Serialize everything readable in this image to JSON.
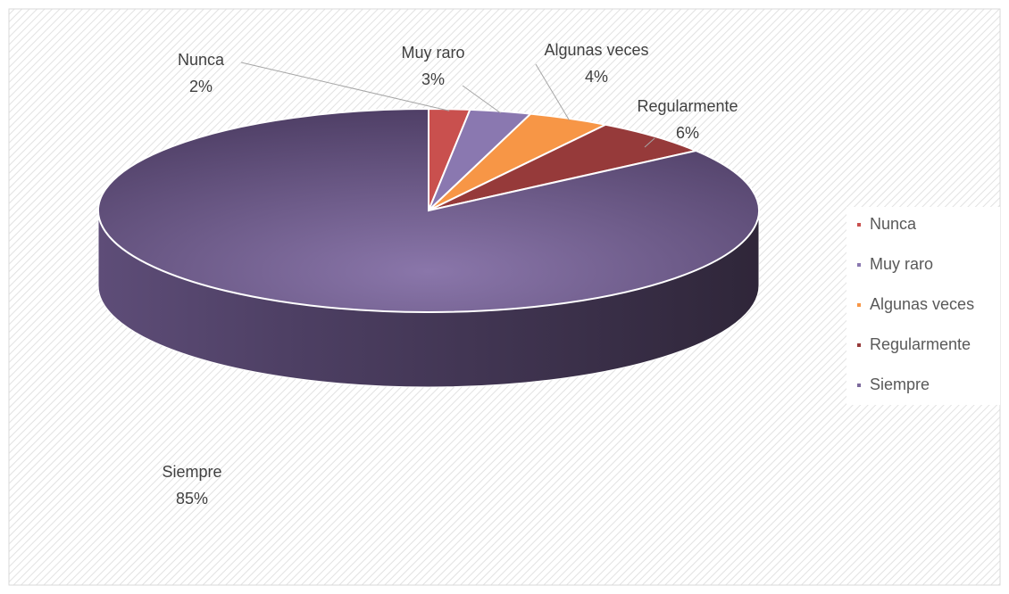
{
  "chart_data": {
    "type": "pie3d",
    "categories": [
      "Nunca",
      "Muy raro",
      "Algunas veces",
      "Regularmente",
      "Siempre"
    ],
    "values": [
      2,
      3,
      4,
      6,
      85
    ],
    "value_labels": [
      "2%",
      "3%",
      "4%",
      "6%",
      "85%"
    ],
    "colors": [
      "#c9504e",
      "#8a78b0",
      "#f79646",
      "#963a3a",
      "#7c6a9c"
    ],
    "legend": "right"
  }
}
